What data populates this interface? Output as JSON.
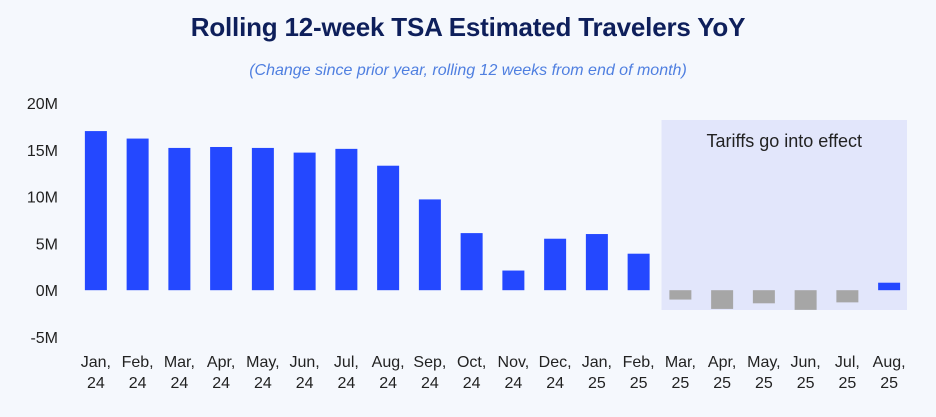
{
  "chart_data": {
    "type": "bar",
    "title": "Rolling 12-week TSA Estimated Travelers YoY",
    "subtitle": "(Change since prior year, rolling 12 weeks from end of month)",
    "xlabel": "",
    "ylabel": "",
    "ylim": [
      -5000000,
      20000000
    ],
    "y_ticks": [
      {
        "value": 20000000,
        "label": "20M"
      },
      {
        "value": 15000000,
        "label": "15M"
      },
      {
        "value": 10000000,
        "label": "10M"
      },
      {
        "value": 5000000,
        "label": "5M"
      },
      {
        "value": 0,
        "label": "0M"
      },
      {
        "value": -5000000,
        "label": "-5M"
      }
    ],
    "categories": [
      [
        "Jan,",
        "24"
      ],
      [
        "Feb,",
        "24"
      ],
      [
        "Mar,",
        "24"
      ],
      [
        "Apr,",
        "24"
      ],
      [
        "May,",
        "24"
      ],
      [
        "Jun,",
        "24"
      ],
      [
        "Jul,",
        "24"
      ],
      [
        "Aug,",
        "24"
      ],
      [
        "Sep,",
        "24"
      ],
      [
        "Oct,",
        "24"
      ],
      [
        "Nov,",
        "24"
      ],
      [
        "Dec,",
        "24"
      ],
      [
        "Jan,",
        "25"
      ],
      [
        "Feb,",
        "25"
      ],
      [
        "Mar,",
        "25"
      ],
      [
        "Apr,",
        "25"
      ],
      [
        "May,",
        "25"
      ],
      [
        "Jun,",
        "25"
      ],
      [
        "Jul,",
        "25"
      ],
      [
        "Aug,",
        "25"
      ]
    ],
    "values": [
      17000000,
      16200000,
      15200000,
      15300000,
      15200000,
      14700000,
      15100000,
      13300000,
      9700000,
      6100000,
      2100000,
      5500000,
      6000000,
      3900000,
      -1000000,
      -2000000,
      -1400000,
      -2100000,
      -1300000,
      800000
    ],
    "colors": {
      "positive": "#2448ff",
      "negative": "#a6a6a6",
      "highlight_band": "#e2e6fb"
    },
    "annotation": {
      "text": "Tariffs go into effect",
      "from_category_index": 14,
      "to_category_index": 19
    },
    "grid": false,
    "legend": "none"
  }
}
